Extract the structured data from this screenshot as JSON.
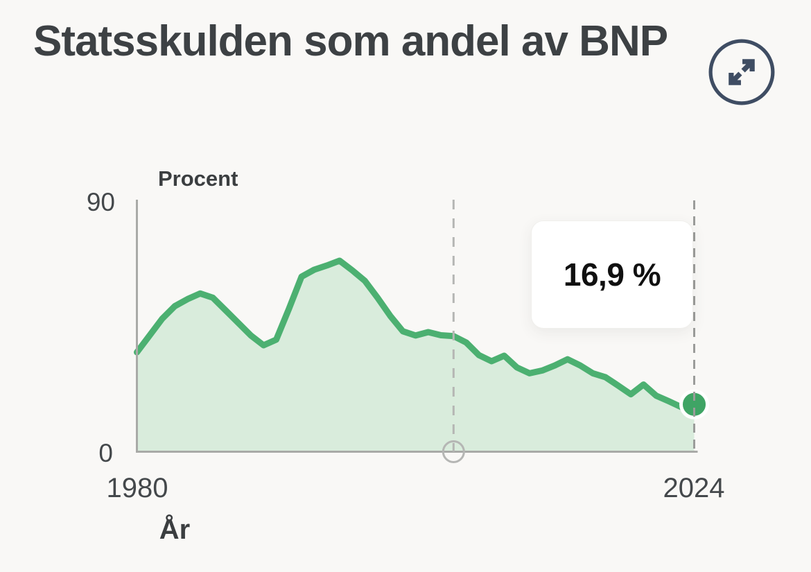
{
  "header": {
    "title": "Statsskulden som andel av BNP"
  },
  "expand_button": {
    "icon": "expand-diagonal-arrows",
    "color": "#3f4d63"
  },
  "axes": {
    "y_title": "Procent",
    "x_title": "År",
    "y_max_label": "90",
    "y_min_label": "0",
    "x_min_label": "1980",
    "x_max_label": "2024"
  },
  "tooltip": {
    "value": "16,9 %"
  },
  "chart_data": {
    "type": "area",
    "title": "Statsskulden som andel av BNP",
    "xlabel": "År",
    "ylabel": "Procent",
    "xlim": [
      1980,
      2024
    ],
    "ylim": [
      0,
      90
    ],
    "grid": false,
    "legend": "none",
    "x": [
      1980,
      1981,
      1982,
      1983,
      1984,
      1985,
      1986,
      1987,
      1988,
      1989,
      1990,
      1991,
      1992,
      1993,
      1994,
      1995,
      1996,
      1997,
      1998,
      1999,
      2000,
      2001,
      2002,
      2003,
      2004,
      2005,
      2006,
      2007,
      2008,
      2009,
      2010,
      2011,
      2012,
      2013,
      2014,
      2015,
      2016,
      2017,
      2018,
      2019,
      2020,
      2021,
      2022,
      2023,
      2024
    ],
    "values": [
      35.5,
      41.5,
      47.5,
      52,
      54.5,
      56.5,
      55,
      50.5,
      46,
      41.5,
      38,
      40,
      51,
      62.5,
      65,
      66.5,
      68.2,
      64.8,
      61,
      55,
      48.5,
      43,
      41.5,
      42.7,
      41.6,
      41.3,
      39,
      34.5,
      32.3,
      34.3,
      30.1,
      28,
      29,
      30.8,
      33,
      30.8,
      28,
      26.6,
      23.6,
      20.5,
      24,
      20,
      18,
      15.9,
      16.9
    ],
    "end_marker": {
      "x": 2024,
      "value": 16.9,
      "label": "16,9 %"
    },
    "scrubber_year": 2005,
    "line_color": "#4cb071",
    "fill_color": "#d9ecdc",
    "marker_color": "#3fa465",
    "marker_ring_color": "#ffffff",
    "axis_color": "#a9aaa7",
    "scrubber_color": "#b5b6b4",
    "cursor_line_color": "#9b9c9a"
  }
}
